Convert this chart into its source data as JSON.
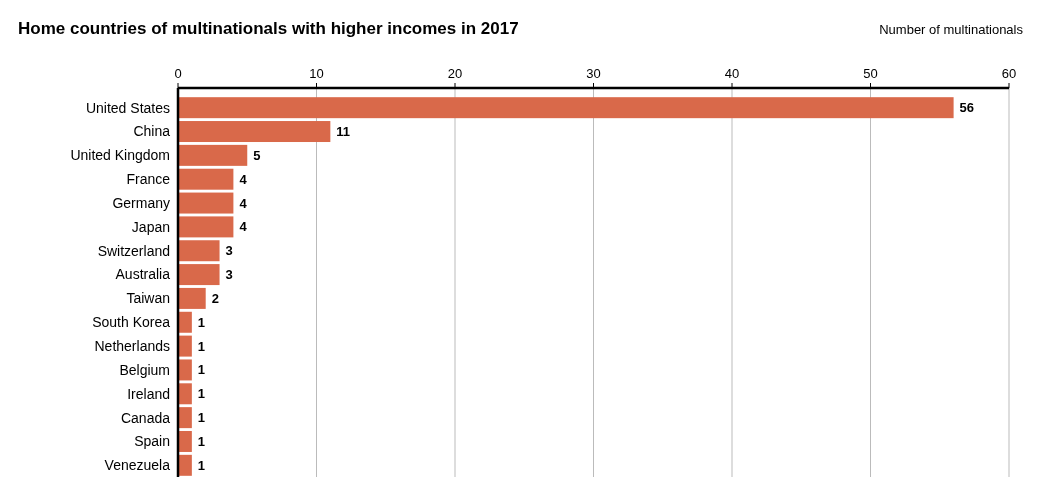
{
  "chart_data": {
    "type": "bar",
    "orientation": "horizontal",
    "title": "Home countries of  multinationals with higher incomes in 2017",
    "xlabel": "Number of multinationals",
    "categories": [
      "United States",
      "China",
      "United Kingdom",
      "France",
      "Germany",
      "Japan",
      "Switzerland",
      "Australia",
      "Taiwan",
      "South Korea",
      "Netherlands",
      "Belgium",
      "Ireland",
      "Canada",
      "Spain",
      "Venezuela"
    ],
    "values": [
      56,
      11,
      5,
      4,
      4,
      4,
      3,
      3,
      2,
      1,
      1,
      1,
      1,
      1,
      1,
      1
    ],
    "color": "#d9694a",
    "xlim": [
      0,
      60
    ],
    "xticks": [
      0,
      10,
      20,
      30,
      40,
      50,
      60
    ],
    "grid": "x",
    "data_labels": true
  }
}
